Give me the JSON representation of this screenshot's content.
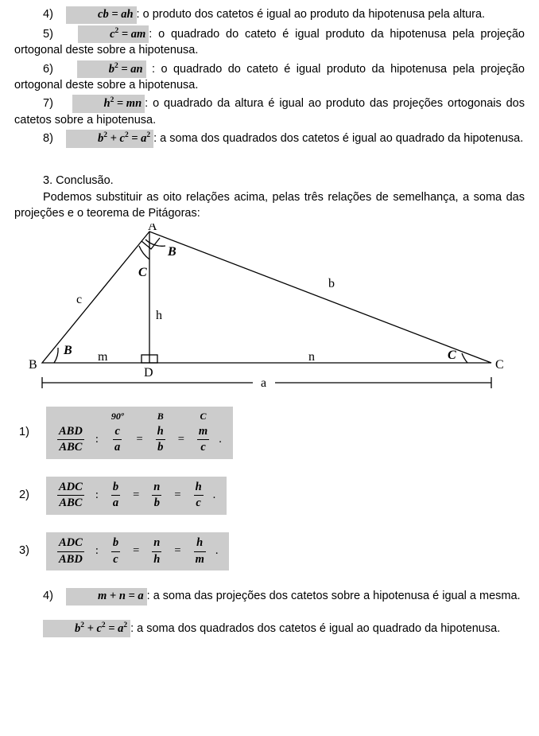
{
  "items": [
    {
      "n": "4)",
      "formula_html": "cb = ah",
      "text": ": o produto dos catetos é igual ao produto da hipotenusa pela altura."
    },
    {
      "n": "5)",
      "formula_html": "c<span class='sup'>2</span> = am",
      "text": ": o quadrado do cateto é igual produto da hipotenusa pela projeção ortogonal deste sobre a hipotenusa."
    },
    {
      "n": "6)",
      "formula_html": "b<span class='sup'>2</span> = an",
      "text": " : o quadrado do cateto é igual produto da hipotenusa pela projeção ortogonal deste sobre a hipotenusa."
    },
    {
      "n": "7)",
      "formula_html": "h<span class='sup'>2</span> = mn",
      "text": ": o quadrado da altura é igual ao produto das projeções ortogonais dos catetos sobre a hipotenusa."
    },
    {
      "n": "8)",
      "formula_html": "b<span class='sup'>2</span> + c<span class='sup'>2</span> = a<span class='sup'>2</span>",
      "text": ": a soma dos quadrados dos catetos é igual ao quadrado da hipotenusa."
    }
  ],
  "section": {
    "heading": "3.  Conclusão.",
    "intro": "Podemos substituir as oito relações acima, pelas três relações de semelhança, a soma das projeções e o teorema de Pitágoras:"
  },
  "diagram": {
    "A": "A",
    "B": "B",
    "C": "C",
    "D": "D",
    "angB": "B",
    "angC_near_top": "C",
    "angB_base": "B",
    "angC_base": "C",
    "c": "c",
    "b": "b",
    "h": "h",
    "m": "m",
    "n": "n",
    "a": "a",
    "colors": {
      "stroke": "#000000",
      "bg": "#ffffff"
    }
  },
  "relations": [
    {
      "n": "1)",
      "hdr": [
        "90º",
        "B",
        "C"
      ],
      "lhs": {
        "top": "ABD",
        "bot": "ABC"
      },
      "fracs": [
        {
          "top": "c",
          "bot": "a"
        },
        {
          "top": "h",
          "bot": "b"
        },
        {
          "top": "m",
          "bot": "c"
        }
      ],
      "showHeader": true
    },
    {
      "n": "2)",
      "lhs": {
        "top": "ADC",
        "bot": "ABC"
      },
      "fracs": [
        {
          "top": "b",
          "bot": "a"
        },
        {
          "top": "n",
          "bot": "b"
        },
        {
          "top": "h",
          "bot": "c"
        }
      ],
      "showHeader": false
    },
    {
      "n": "3)",
      "lhs": {
        "top": "ADC",
        "bot": "ABD"
      },
      "fracs": [
        {
          "top": "b",
          "bot": "c"
        },
        {
          "top": "n",
          "bot": "h"
        },
        {
          "top": "h",
          "bot": "m"
        }
      ],
      "showHeader": false
    }
  ],
  "tail": [
    {
      "n": "4)",
      "formula_html": "m + n = a",
      "text": ": a soma das projeções dos catetos sobre a hipotenusa é igual a mesma."
    },
    {
      "n": null,
      "formula_html": "b<span class='sup'>2</span> + c<span class='sup'>2</span> = a<span class='sup'>2</span>",
      "text": ": a soma dos quadrados dos catetos é igual ao quadrado da hipotenusa."
    }
  ]
}
